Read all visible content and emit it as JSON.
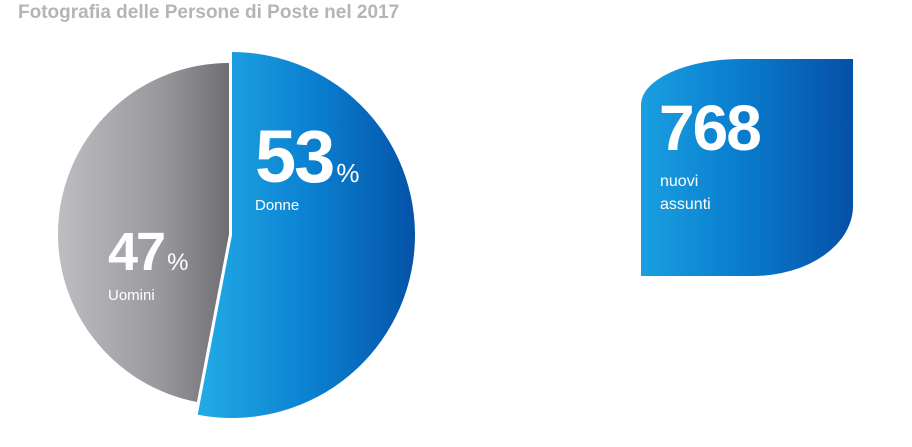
{
  "title": "Fotografia delle Persone di Poste nel 2017",
  "chart_data": {
    "type": "pie",
    "title": "Fotografia delle Persone di Poste nel 2017",
    "slices": [
      {
        "label": "Donne",
        "value": 53,
        "value_text": "53",
        "unit": "%",
        "color": "#0a74c8"
      },
      {
        "label": "Uomini",
        "value": 47,
        "value_text": "47",
        "unit": "%",
        "color": "#8a8a8e"
      }
    ]
  },
  "kpi": {
    "value": "768",
    "line1": "nuovi",
    "line2": "assunti",
    "color": "#0a7ecf"
  }
}
